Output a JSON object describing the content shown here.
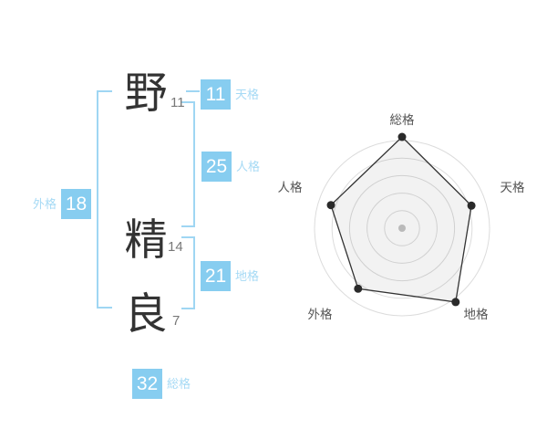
{
  "name": {
    "chars": [
      {
        "char": "野",
        "strokes": "11"
      },
      {
        "char": "精",
        "strokes": "14"
      },
      {
        "char": "良",
        "strokes": "7"
      }
    ]
  },
  "kaku": {
    "tenkaku": {
      "label": "天格",
      "value": "11"
    },
    "jinkaku": {
      "label": "人格",
      "value": "25"
    },
    "chikaku": {
      "label": "地格",
      "value": "21"
    },
    "gaikaku": {
      "label": "外格",
      "value": "18"
    },
    "soukaku": {
      "label": "総格",
      "value": "32"
    }
  },
  "colors": {
    "badge_blue": "#87cdf0",
    "label_blue": "#a6daf5",
    "bracket_blue": "#9fd6f3",
    "kanji_gray": "#333333",
    "stroke_count_gray": "#777777",
    "ring_gray": "#dcdcdc",
    "center_dot_gray": "#c5c5c5",
    "radar_label_gray": "#555555",
    "polygon_stroke": "#333333",
    "vertex_dot": "#2a2a2a"
  },
  "chart_data": {
    "type": "radar",
    "title": "",
    "axes": [
      "総格",
      "天格",
      "地格",
      "外格",
      "人格"
    ],
    "values": [
      5,
      4,
      5,
      4.1,
      4.1
    ],
    "scale_min": 0,
    "scale_max": 5,
    "rings": 5,
    "grid": "circular",
    "legend_position": "none"
  }
}
